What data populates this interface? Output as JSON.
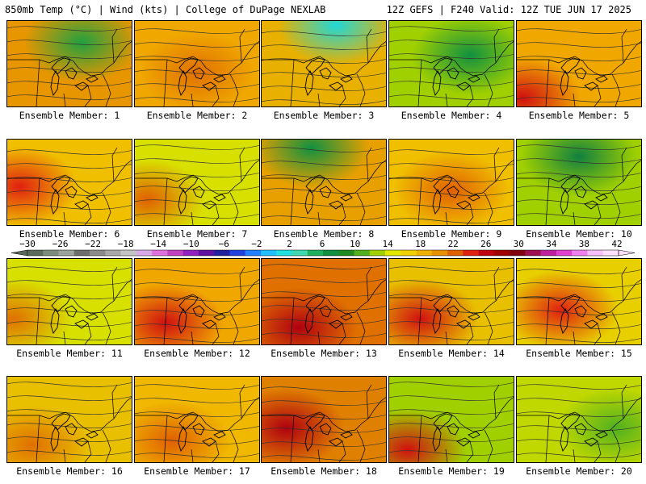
{
  "header": {
    "left": "850mb Temp (°C) | Wind (kts) | College of DuPage NEXLAB",
    "right": "12Z GEFS | F240 Valid: 12Z TUE JUN 17 2025"
  },
  "colorbar": {
    "tick_labels": [
      "−30",
      "−26",
      "−22",
      "−18",
      "−14",
      "−10",
      "−6",
      "−2",
      "2",
      "6",
      "10",
      "14",
      "18",
      "22",
      "26",
      "30",
      "34",
      "38",
      "42"
    ],
    "colors": [
      "#5a6a5a",
      "#7c8c7c",
      "#9aa49a",
      "#6e6e6e",
      "#8a8a8a",
      "#a8a8a8",
      "#c4c4c4",
      "#d8a8e8",
      "#e070e0",
      "#c040c0",
      "#9020c0",
      "#6010a0",
      "#2020a0",
      "#2040e0",
      "#2080ff",
      "#20c0ff",
      "#20e0e0",
      "#40d8b0",
      "#20b060",
      "#109040",
      "#208a20",
      "#50b020",
      "#a0d000",
      "#e0e800",
      "#f0d000",
      "#f0b000",
      "#e89000",
      "#e06000",
      "#e02010",
      "#c00010",
      "#a00000",
      "#800010",
      "#a01050",
      "#c020a0",
      "#e040d0",
      "#f080f0",
      "#f8c0f8",
      "#ffe0ff"
    ]
  },
  "panels": [
    {
      "label": "Ensemble Member: 1",
      "base": "#e89600",
      "hot": "#20a040",
      "hx": 0.6,
      "hy": 0.25
    },
    {
      "label": "Ensemble Member: 2",
      "base": "#f0a800",
      "hot": "#e07000",
      "hx": 0.5,
      "hy": 0.6
    },
    {
      "label": "Ensemble Member: 3",
      "base": "#e8b000",
      "hot": "#20d8d8",
      "hx": 0.6,
      "hy": 0.05
    },
    {
      "label": "Ensemble Member: 4",
      "base": "#a0d000",
      "hot": "#109040",
      "hx": 0.65,
      "hy": 0.4
    },
    {
      "label": "Ensemble Member: 5",
      "base": "#f0a800",
      "hot": "#d01010",
      "hx": 0.05,
      "hy": 0.9
    },
    {
      "label": "Ensemble Member: 6",
      "base": "#f0c000",
      "hot": "#e02010",
      "hx": 0.1,
      "hy": 0.55
    },
    {
      "label": "Ensemble Member: 7",
      "base": "#d8e000",
      "hot": "#e06000",
      "hx": 0.1,
      "hy": 0.7
    },
    {
      "label": "Ensemble Member: 8",
      "base": "#e8a000",
      "hot": "#109040",
      "hx": 0.4,
      "hy": 0.1
    },
    {
      "label": "Ensemble Member: 9",
      "base": "#f0c000",
      "hot": "#e06000",
      "hx": 0.5,
      "hy": 0.6
    },
    {
      "label": "Ensemble Member: 10",
      "base": "#a0d000",
      "hot": "#108040",
      "hx": 0.5,
      "hy": 0.2
    },
    {
      "label": "Ensemble Member: 11",
      "base": "#d8e000",
      "hot": "#e07000",
      "hx": 0.05,
      "hy": 0.7
    },
    {
      "label": "Ensemble Member: 12",
      "base": "#f0a800",
      "hot": "#d01010",
      "hx": 0.25,
      "hy": 0.75
    },
    {
      "label": "Ensemble Member: 13",
      "base": "#e07000",
      "hot": "#b00010",
      "hx": 0.3,
      "hy": 0.8
    },
    {
      "label": "Ensemble Member: 14",
      "base": "#e8c000",
      "hot": "#d01010",
      "hx": 0.25,
      "hy": 0.7
    },
    {
      "label": "Ensemble Member: 15",
      "base": "#e8d000",
      "hot": "#e02010",
      "hx": 0.35,
      "hy": 0.6
    },
    {
      "label": "Ensemble Member: 16",
      "base": "#e8c000",
      "hot": "#e07000",
      "hx": 0.2,
      "hy": 0.8
    },
    {
      "label": "Ensemble Member: 17",
      "base": "#f0b800",
      "hot": "#e06000",
      "hx": 0.3,
      "hy": 0.75
    },
    {
      "label": "Ensemble Member: 18",
      "base": "#e08000",
      "hot": "#b00010",
      "hx": 0.2,
      "hy": 0.6
    },
    {
      "label": "Ensemble Member: 19",
      "base": "#a0d000",
      "hot": "#d01010",
      "hx": 0.15,
      "hy": 0.85
    },
    {
      "label": "Ensemble Member: 20",
      "base": "#c0d800",
      "hot": "#50b020",
      "hx": 0.8,
      "hy": 0.6
    }
  ]
}
